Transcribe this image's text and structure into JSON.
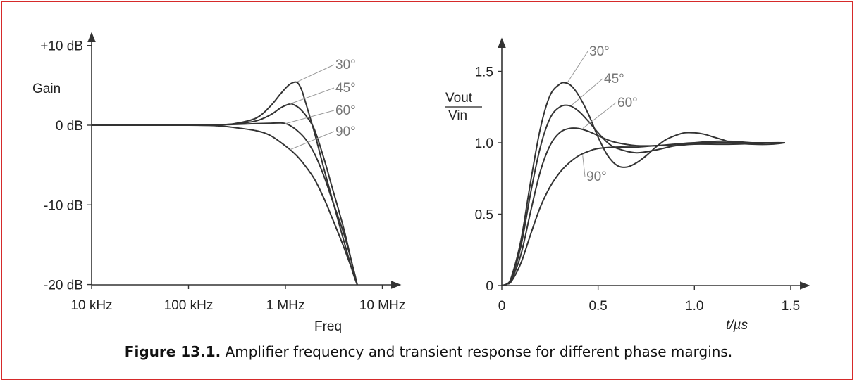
{
  "caption": {
    "label": "Figure 13.1.",
    "text": "Amplifier frequency and transient response for different phase margins."
  },
  "colors": {
    "border": "#d62a2a",
    "curve": "#333333",
    "annotation": "#777777"
  },
  "chart_data": [
    {
      "type": "line",
      "x_scale": "log",
      "xlabel": "Freq",
      "ylabel": "Gain",
      "xlim": [
        10000,
        13000000
      ],
      "ylim": [
        -20,
        11
      ],
      "x_ticks": [
        10000,
        100000,
        1000000,
        10000000
      ],
      "x_tick_labels": [
        "10 kHz",
        "100 kHz",
        "1 MHz",
        "10 MHz"
      ],
      "y_ticks": [
        10,
        0,
        -10,
        -20
      ],
      "y_tick_labels": [
        "+10 dB",
        "0 dB",
        "-10 dB",
        "-20 dB"
      ],
      "grid": false,
      "series": [
        {
          "name": "30°",
          "x": [
            10000,
            100000,
            200000,
            300000,
            500000,
            700000,
            900000,
            1100000,
            1300000,
            1450000,
            1600000,
            2000000,
            2500000,
            3000000,
            4000000,
            5000000,
            5500000
          ],
          "y": [
            0,
            0,
            0.05,
            0.2,
            0.9,
            2.4,
            4.0,
            5.1,
            5.4,
            4.6,
            3.0,
            -1.0,
            -5.5,
            -9.0,
            -14.5,
            -18.6,
            -20
          ]
        },
        {
          "name": "45°",
          "x": [
            10000,
            100000,
            200000,
            300000,
            500000,
            700000,
            900000,
            1100000,
            1200000,
            1400000,
            1700000,
            2000000,
            2500000,
            3000000,
            4000000,
            5000000,
            5500000
          ],
          "y": [
            0,
            0,
            0.05,
            0.15,
            0.55,
            1.3,
            2.2,
            2.65,
            2.6,
            2.1,
            0.9,
            -0.6,
            -4.2,
            -7.6,
            -13.0,
            -18.0,
            -20
          ]
        },
        {
          "name": "60°",
          "x": [
            10000,
            100000,
            200000,
            300000,
            500000,
            700000,
            900000,
            1000000,
            1100000,
            1300000,
            1600000,
            2000000,
            2500000,
            3000000,
            4000000,
            5000000,
            5500000
          ],
          "y": [
            0,
            0,
            0.05,
            0.1,
            0.2,
            0.25,
            0.28,
            0.2,
            0.0,
            -0.6,
            -1.7,
            -3.6,
            -6.4,
            -9.2,
            -13.6,
            -17.9,
            -20
          ]
        },
        {
          "name": "90°",
          "x": [
            10000,
            100000,
            200000,
            300000,
            500000,
            700000,
            1000000,
            1300000,
            1600000,
            2000000,
            2500000,
            3000000,
            3500000,
            4000000,
            5000000,
            5500000
          ],
          "y": [
            0,
            0,
            -0.08,
            -0.3,
            -0.7,
            -1.3,
            -2.6,
            -3.8,
            -5.1,
            -6.8,
            -9.2,
            -11.5,
            -13.5,
            -15.3,
            -18.5,
            -20
          ]
        }
      ]
    },
    {
      "type": "line",
      "xlabel": "t/µs",
      "ylabel_num": "Vout",
      "ylabel_den": "Vin",
      "xlim": [
        0,
        1.6
      ],
      "ylim": [
        0,
        1.7
      ],
      "x_ticks": [
        0,
        0.5,
        1.0,
        1.5
      ],
      "x_tick_labels": [
        "0",
        "0.5",
        "1.0",
        "1.5"
      ],
      "y_ticks": [
        0,
        0.5,
        1.0,
        1.5
      ],
      "y_tick_labels": [
        "0",
        "0.5",
        "1.0",
        "1.5"
      ],
      "grid": false,
      "series": [
        {
          "name": "30°",
          "x": [
            0,
            0.025,
            0.05,
            0.1,
            0.15,
            0.2,
            0.25,
            0.3,
            0.33,
            0.36,
            0.4,
            0.45,
            0.5,
            0.55,
            0.6,
            0.65,
            0.7,
            0.75,
            0.8,
            0.85,
            0.9,
            0.95,
            1.0,
            1.05,
            1.1,
            1.15,
            1.2,
            1.3,
            1.4,
            1.47
          ],
          "y": [
            0,
            0.01,
            0.06,
            0.32,
            0.73,
            1.1,
            1.33,
            1.41,
            1.42,
            1.4,
            1.33,
            1.2,
            1.04,
            0.91,
            0.84,
            0.83,
            0.86,
            0.91,
            0.97,
            1.02,
            1.05,
            1.07,
            1.07,
            1.06,
            1.04,
            1.02,
            1.0,
            0.99,
            0.99,
            1.0
          ]
        },
        {
          "name": "45°",
          "x": [
            0,
            0.025,
            0.05,
            0.1,
            0.15,
            0.2,
            0.25,
            0.3,
            0.35,
            0.4,
            0.45,
            0.5,
            0.55,
            0.6,
            0.7,
            0.8,
            0.9,
            1.0,
            1.1,
            1.2,
            1.3,
            1.4,
            1.47
          ],
          "y": [
            0,
            0.01,
            0.05,
            0.28,
            0.65,
            0.97,
            1.17,
            1.25,
            1.26,
            1.22,
            1.15,
            1.07,
            1.0,
            0.96,
            0.93,
            0.95,
            0.98,
            1.0,
            1.01,
            1.01,
            1.0,
            1.0,
            1.0
          ]
        },
        {
          "name": "60°",
          "x": [
            0,
            0.025,
            0.05,
            0.1,
            0.15,
            0.2,
            0.25,
            0.3,
            0.35,
            0.4,
            0.45,
            0.5,
            0.55,
            0.6,
            0.7,
            0.8,
            0.9,
            1.0,
            1.2,
            1.4,
            1.47
          ],
          "y": [
            0,
            0.01,
            0.04,
            0.22,
            0.52,
            0.8,
            0.98,
            1.07,
            1.1,
            1.1,
            1.08,
            1.05,
            1.02,
            1.0,
            0.98,
            0.98,
            0.99,
            1.0,
            1.0,
            1.0,
            1.0
          ]
        },
        {
          "name": "90°",
          "x": [
            0,
            0.025,
            0.05,
            0.1,
            0.15,
            0.2,
            0.25,
            0.3,
            0.35,
            0.4,
            0.45,
            0.5,
            0.6,
            0.7,
            0.8,
            0.9,
            1.0,
            1.2,
            1.4,
            1.47
          ],
          "y": [
            0,
            0.01,
            0.03,
            0.16,
            0.36,
            0.55,
            0.69,
            0.79,
            0.86,
            0.91,
            0.94,
            0.96,
            0.97,
            0.97,
            0.98,
            0.98,
            0.99,
            0.99,
            1.0,
            1.0
          ]
        }
      ]
    }
  ]
}
